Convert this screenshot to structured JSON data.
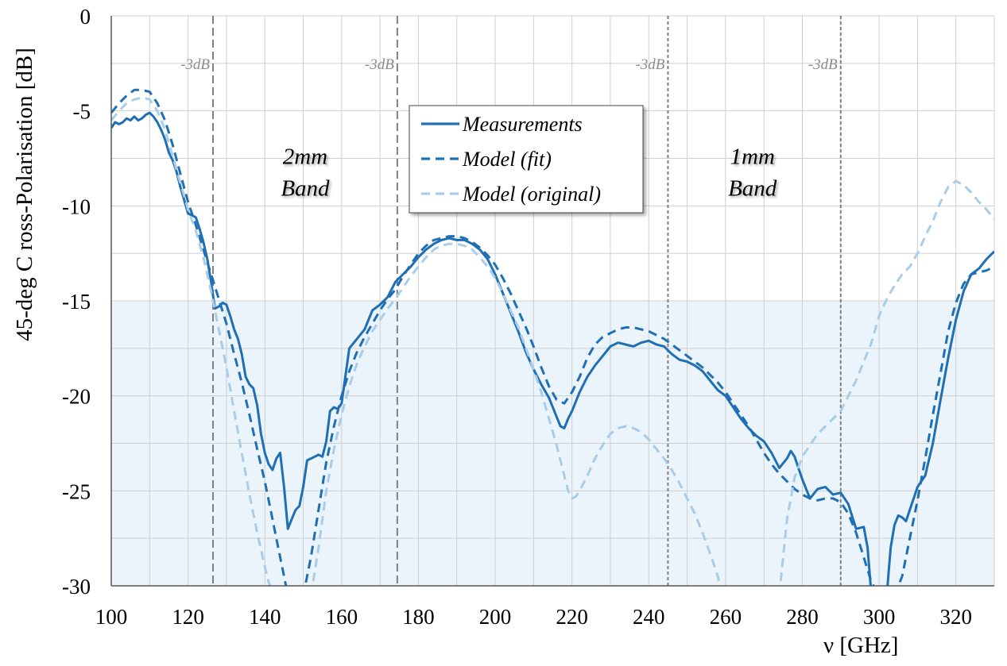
{
  "chart_data": {
    "type": "line",
    "title": "",
    "xlabel": "ν [GHz]",
    "ylabel": "45-deg C ross-Polarisation [dB]",
    "xlim": [
      100,
      330
    ],
    "ylim": [
      -30,
      0
    ],
    "xticks": [
      100,
      120,
      140,
      160,
      180,
      200,
      220,
      240,
      260,
      280,
      300,
      320
    ],
    "yticks": [
      0,
      -5,
      -10,
      -15,
      -20,
      -25,
      -30
    ],
    "x_minor_step": 10,
    "y_minor_step": 2.5,
    "grid": true,
    "legend_position": "top-center",
    "colors": {
      "measurements": "#1f6fb4",
      "model_fit": "#1f6fb4",
      "model_original": "#a9cde8",
      "shaded_region": "#eaf4fa",
      "grid": "#cfcfcf",
      "markers": "#7f7f7f"
    },
    "shaded_region": {
      "y_from": -30,
      "y_to": -15
    },
    "band_markers": [
      {
        "x": 126.5,
        "label": "-3dB",
        "style": "dashed"
      },
      {
        "x": 174.5,
        "label": "-3dB",
        "style": "dashed"
      },
      {
        "x": 245,
        "label": "-3dB",
        "style": "dotted"
      },
      {
        "x": 290,
        "label": "-3dB",
        "style": "dotted"
      }
    ],
    "band_labels": [
      {
        "lines": [
          "2mm",
          "Band"
        ],
        "x": 150.5,
        "y": -7.8
      },
      {
        "lines": [
          "1mm",
          "Band"
        ],
        "x": 267,
        "y": -7.8
      }
    ],
    "series": [
      {
        "name": "Measurements",
        "style": "solid",
        "x": [
          100,
          101,
          102,
          103,
          104,
          105,
          106,
          107,
          108,
          109,
          110,
          111,
          112,
          113,
          114,
          115,
          116,
          117,
          118,
          119,
          120,
          121,
          122,
          123,
          124,
          125,
          126,
          127,
          128,
          129,
          130,
          131,
          132,
          133,
          134,
          135,
          136,
          137,
          138,
          139,
          140,
          141,
          142,
          143,
          144,
          145,
          146,
          147,
          148,
          149,
          150,
          151,
          152,
          153,
          154,
          155,
          156,
          157,
          158,
          159,
          160,
          162,
          164,
          166,
          168,
          170,
          172,
          174,
          176,
          178,
          180,
          182,
          184,
          186,
          188,
          190,
          192,
          194,
          196,
          198,
          200,
          202,
          204,
          206,
          208,
          210,
          212,
          214,
          216,
          217,
          218,
          219,
          220,
          222,
          224,
          226,
          228,
          230,
          232,
          234,
          236,
          238,
          240,
          242,
          244,
          246,
          248,
          250,
          252,
          254,
          256,
          258,
          260,
          262,
          264,
          266,
          268,
          270,
          272,
          274,
          276,
          277,
          278,
          280,
          282,
          284,
          286,
          288,
          290,
          292,
          294,
          296,
          297,
          298
        ],
        "y": [
          -5.9,
          -5.6,
          -5.7,
          -5.6,
          -5.4,
          -5.5,
          -5.3,
          -5.5,
          -5.4,
          -5.2,
          -5.1,
          -5.3,
          -5.6,
          -6.0,
          -6.5,
          -7.2,
          -7.6,
          -8.2,
          -9.0,
          -9.7,
          -10.4,
          -10.5,
          -10.6,
          -11.2,
          -11.9,
          -12.8,
          -14.0,
          -15.4,
          -15.3,
          -15.1,
          -15.2,
          -15.8,
          -16.5,
          -17.0,
          -17.8,
          -19.0,
          -19.4,
          -19.6,
          -20.5,
          -22.0,
          -23.0,
          -23.6,
          -23.9,
          -23.3,
          -23.0,
          -24.8,
          -27.0,
          -26.5,
          -26.0,
          -25.8,
          -24.8,
          -23.4,
          -23.3,
          -23.2,
          -23.1,
          -23.2,
          -22.4,
          -20.8,
          -20.6,
          -20.7,
          -20.4,
          -17.5,
          -17.0,
          -16.5,
          -15.5,
          -15.2,
          -14.8,
          -14.0,
          -13.6,
          -13.2,
          -12.7,
          -12.3,
          -12.0,
          -11.8,
          -11.7,
          -11.8,
          -11.8,
          -12.0,
          -12.3,
          -12.8,
          -13.6,
          -14.6,
          -15.6,
          -16.6,
          -17.7,
          -18.6,
          -19.4,
          -20.1,
          -21.1,
          -21.6,
          -21.7,
          -21.2,
          -20.8,
          -19.8,
          -19.0,
          -18.4,
          -17.9,
          -17.4,
          -17.2,
          -17.3,
          -17.4,
          -17.2,
          -17.1,
          -17.3,
          -17.4,
          -17.8,
          -18.1,
          -18.2,
          -18.4,
          -18.7,
          -19.2,
          -19.7,
          -20.0,
          -20.6,
          -21.2,
          -21.7,
          -22.1,
          -22.4,
          -23.0,
          -23.8,
          -23.3,
          -22.9,
          -23.2,
          -24.4,
          -25.4,
          -24.9,
          -24.8,
          -25.2,
          -25.1,
          -25.7,
          -27.0,
          -26.9,
          -28.0,
          -30.5
        ]
      },
      {
        "name": "Measurements",
        "style": "solid",
        "x": [
          302,
          303,
          304,
          305,
          306,
          307,
          308,
          309,
          310,
          312,
          314,
          316,
          318,
          320,
          322,
          324,
          326,
          328,
          330
        ],
        "y": [
          -30.5,
          -28.0,
          -26.8,
          -26.3,
          -26.4,
          -26.6,
          -26.0,
          -25.4,
          -24.8,
          -24.2,
          -22.5,
          -20.2,
          -18.0,
          -16.0,
          -14.5,
          -13.6,
          -13.3,
          -12.8,
          -12.4
        ]
      },
      {
        "name": "Model (fit)",
        "style": "dashed",
        "x": [
          100,
          102,
          104,
          106,
          108,
          110,
          112,
          114,
          116,
          118,
          120,
          122,
          124,
          126,
          128,
          130,
          132,
          134,
          136,
          138,
          140,
          142,
          144,
          145,
          146,
          150,
          151,
          152,
          154,
          156,
          158,
          160,
          162,
          164,
          166,
          168,
          170,
          172,
          174,
          176,
          178,
          180,
          182,
          184,
          186,
          188,
          190,
          192,
          194,
          196,
          198,
          200,
          202,
          204,
          206,
          208,
          210,
          212,
          214,
          216,
          218,
          220,
          222,
          224,
          226,
          228,
          230,
          232,
          234,
          236,
          238,
          240,
          242,
          244,
          246,
          248,
          250,
          252,
          254,
          256,
          258,
          260,
          262,
          264,
          266,
          268,
          270,
          272,
          274,
          276,
          278,
          280,
          282,
          284,
          286,
          288,
          290,
          292,
          294,
          296,
          298,
          300,
          301
        ],
        "y": [
          -5.1,
          -4.6,
          -4.2,
          -3.9,
          -3.9,
          -4.0,
          -4.6,
          -5.5,
          -6.8,
          -8.3,
          -9.8,
          -11.0,
          -12.3,
          -13.6,
          -14.9,
          -16.2,
          -17.8,
          -19.3,
          -21.0,
          -22.8,
          -24.5,
          -26.5,
          -28.5,
          -29.5,
          -30.5,
          -30.5,
          -29.5,
          -28.5,
          -26.0,
          -23.5,
          -21.6,
          -20.0,
          -18.7,
          -17.7,
          -16.9,
          -16.2,
          -15.5,
          -14.9,
          -14.4,
          -13.7,
          -13.1,
          -12.5,
          -12.1,
          -11.8,
          -11.7,
          -11.6,
          -11.6,
          -11.7,
          -11.9,
          -12.2,
          -12.6,
          -13.1,
          -13.8,
          -14.6,
          -15.5,
          -16.4,
          -17.4,
          -18.5,
          -19.5,
          -20.2,
          -20.4,
          -19.8,
          -19.0,
          -18.0,
          -17.3,
          -16.9,
          -16.7,
          -16.5,
          -16.4,
          -16.4,
          -16.5,
          -16.6,
          -16.8,
          -17.0,
          -17.3,
          -17.6,
          -17.9,
          -18.2,
          -18.5,
          -18.9,
          -19.3,
          -19.8,
          -20.4,
          -21.0,
          -21.6,
          -22.3,
          -23.0,
          -23.6,
          -24.1,
          -24.5,
          -24.9,
          -25.2,
          -25.4,
          -25.5,
          -25.4,
          -25.4,
          -25.6,
          -26.2,
          -27.2,
          -28.5,
          -29.8,
          -30.5,
          -30.5
        ]
      },
      {
        "name": "Model (fit)",
        "style": "dashed",
        "x": [
          304,
          306,
          308,
          310,
          312,
          314,
          316,
          318,
          320,
          322,
          324,
          326,
          328,
          330
        ],
        "y": [
          -30.5,
          -29.5,
          -27.5,
          -25.5,
          -23.3,
          -21.0,
          -18.8,
          -16.6,
          -15.1,
          -14.1,
          -13.6,
          -13.5,
          -13.4,
          -13.2
        ]
      },
      {
        "name": "Model (original)",
        "style": "dashed",
        "x": [
          100,
          102,
          104,
          106,
          108,
          110,
          112,
          114,
          116,
          118,
          120,
          122,
          124,
          126,
          128,
          130,
          132,
          134,
          136,
          138,
          140,
          141,
          142,
          143
        ],
        "y": [
          -5.5,
          -5.0,
          -4.6,
          -4.4,
          -4.3,
          -4.4,
          -5.0,
          -6.0,
          -7.4,
          -8.8,
          -10.2,
          -11.3,
          -12.7,
          -14.5,
          -16.5,
          -18.5,
          -20.8,
          -23.0,
          -25.2,
          -27.2,
          -29.0,
          -29.8,
          -30.3,
          -30.5
        ]
      },
      {
        "name": "Model (original)",
        "style": "dashed",
        "x": [
          152,
          154,
          156,
          158,
          160,
          162,
          164,
          166,
          168,
          170,
          172,
          174,
          176,
          178,
          180,
          182,
          184,
          186,
          188,
          190,
          192,
          194,
          196,
          198,
          200,
          202,
          204,
          206,
          208,
          210,
          212,
          214,
          216,
          218,
          219,
          220,
          221,
          222,
          224,
          226,
          228,
          230,
          232,
          234,
          236,
          238,
          240,
          242,
          244,
          246,
          248,
          250,
          252,
          254,
          256,
          258,
          259
        ],
        "y": [
          -30.5,
          -28.0,
          -25.0,
          -22.8,
          -21.0,
          -19.5,
          -18.3,
          -17.4,
          -16.6,
          -16.0,
          -15.4,
          -14.9,
          -14.3,
          -13.7,
          -13.2,
          -12.7,
          -12.3,
          -12.1,
          -12.0,
          -12.0,
          -12.1,
          -12.3,
          -12.7,
          -13.2,
          -13.8,
          -14.6,
          -15.5,
          -16.4,
          -17.5,
          -18.6,
          -19.8,
          -21.2,
          -22.6,
          -24.2,
          -25.0,
          -25.4,
          -25.3,
          -25.0,
          -24.2,
          -23.3,
          -22.6,
          -22.0,
          -21.7,
          -21.6,
          -21.7,
          -21.9,
          -22.3,
          -22.8,
          -23.3,
          -23.9,
          -24.6,
          -25.4,
          -26.2,
          -27.2,
          -28.3,
          -29.5,
          -30.5
        ]
      },
      {
        "name": "Model (original)",
        "style": "dashed",
        "x": [
          274,
          275,
          276,
          278,
          280,
          282,
          284,
          286,
          288,
          290,
          292,
          294,
          296,
          298,
          300,
          302,
          304,
          306,
          308,
          310,
          312,
          314,
          316,
          318,
          320,
          322,
          324,
          326,
          328,
          330
        ],
        "y": [
          -30.5,
          -28.5,
          -26.5,
          -24.3,
          -23.2,
          -22.6,
          -22.0,
          -21.6,
          -21.2,
          -20.8,
          -20.0,
          -19.2,
          -18.2,
          -17.2,
          -15.8,
          -14.9,
          -14.2,
          -13.6,
          -13.2,
          -12.5,
          -11.6,
          -10.8,
          -9.8,
          -9.0,
          -8.7,
          -8.9,
          -9.3,
          -9.8,
          -10.2,
          -10.7
        ]
      }
    ],
    "legend": [
      "Measurements",
      "Model (fit)",
      "Model (original)"
    ]
  }
}
